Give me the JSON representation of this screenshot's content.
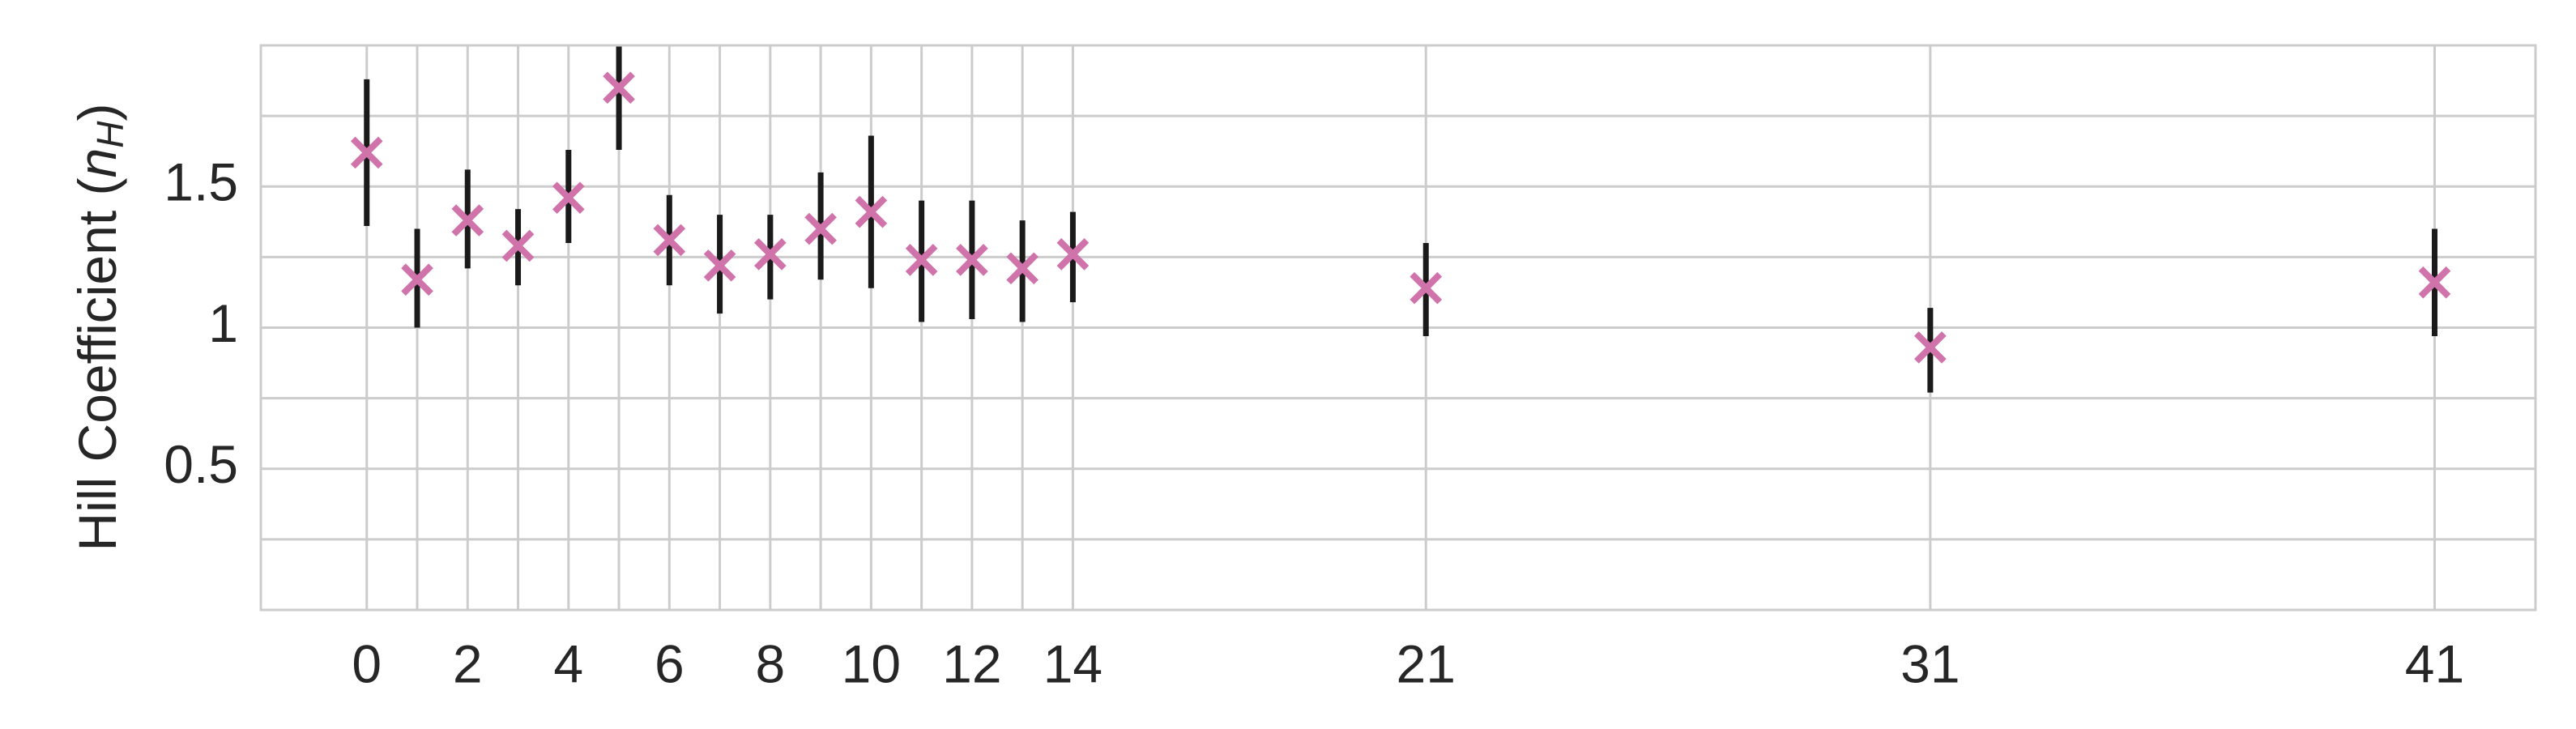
{
  "chart_data": {
    "type": "scatter",
    "title": "",
    "xlabel": "",
    "ylabel_prefix": "Hill Coefficient (",
    "ylabel_var": "n",
    "ylabel_sub": "H",
    "ylabel_suffix": ")",
    "xlim": [
      -2.1,
      43.0
    ],
    "ylim": [
      0.0,
      2.0
    ],
    "grid": true,
    "x_ticks": [
      0,
      2,
      4,
      6,
      8,
      10,
      12,
      14,
      21,
      31,
      41
    ],
    "x_tick_labels": [
      "0",
      "2",
      "4",
      "6",
      "8",
      "10",
      "12",
      "14",
      "21",
      "31",
      "41"
    ],
    "x_gridlines": [
      0,
      1,
      2,
      3,
      4,
      5,
      6,
      7,
      8,
      9,
      10,
      11,
      12,
      13,
      14,
      21,
      31,
      41
    ],
    "y_ticks": [
      0.5,
      1.0,
      1.5
    ],
    "y_tick_labels": [
      "0.5",
      "1",
      "1.5"
    ],
    "y_gridlines": [
      0.25,
      0.5,
      0.75,
      1.0,
      1.25,
      1.5,
      1.75
    ],
    "marker_color": "#d173ab",
    "errorbar_color": "#1a1a1a",
    "series": [
      {
        "points": [
          {
            "x": 0,
            "y": 1.62,
            "low": 1.36,
            "high": 1.88
          },
          {
            "x": 1,
            "y": 1.17,
            "low": 1.0,
            "high": 1.35
          },
          {
            "x": 2,
            "y": 1.38,
            "low": 1.21,
            "high": 1.56
          },
          {
            "x": 3,
            "y": 1.29,
            "low": 1.15,
            "high": 1.42
          },
          {
            "x": 4,
            "y": 1.46,
            "low": 1.3,
            "high": 1.63
          },
          {
            "x": 5,
            "y": 1.85,
            "low": 1.63,
            "high": 2.0
          },
          {
            "x": 6,
            "y": 1.31,
            "low": 1.15,
            "high": 1.47
          },
          {
            "x": 7,
            "y": 1.22,
            "low": 1.05,
            "high": 1.4
          },
          {
            "x": 8,
            "y": 1.26,
            "low": 1.1,
            "high": 1.4
          },
          {
            "x": 9,
            "y": 1.35,
            "low": 1.17,
            "high": 1.55
          },
          {
            "x": 10,
            "y": 1.41,
            "low": 1.14,
            "high": 1.68
          },
          {
            "x": 11,
            "y": 1.24,
            "low": 1.02,
            "high": 1.45
          },
          {
            "x": 12,
            "y": 1.24,
            "low": 1.03,
            "high": 1.45
          },
          {
            "x": 13,
            "y": 1.21,
            "low": 1.02,
            "high": 1.38
          },
          {
            "x": 14,
            "y": 1.26,
            "low": 1.09,
            "high": 1.41
          },
          {
            "x": 21,
            "y": 1.14,
            "low": 0.97,
            "high": 1.3
          },
          {
            "x": 31,
            "y": 0.93,
            "low": 0.77,
            "high": 1.07
          },
          {
            "x": 41,
            "y": 1.16,
            "low": 0.97,
            "high": 1.35
          }
        ]
      }
    ]
  }
}
